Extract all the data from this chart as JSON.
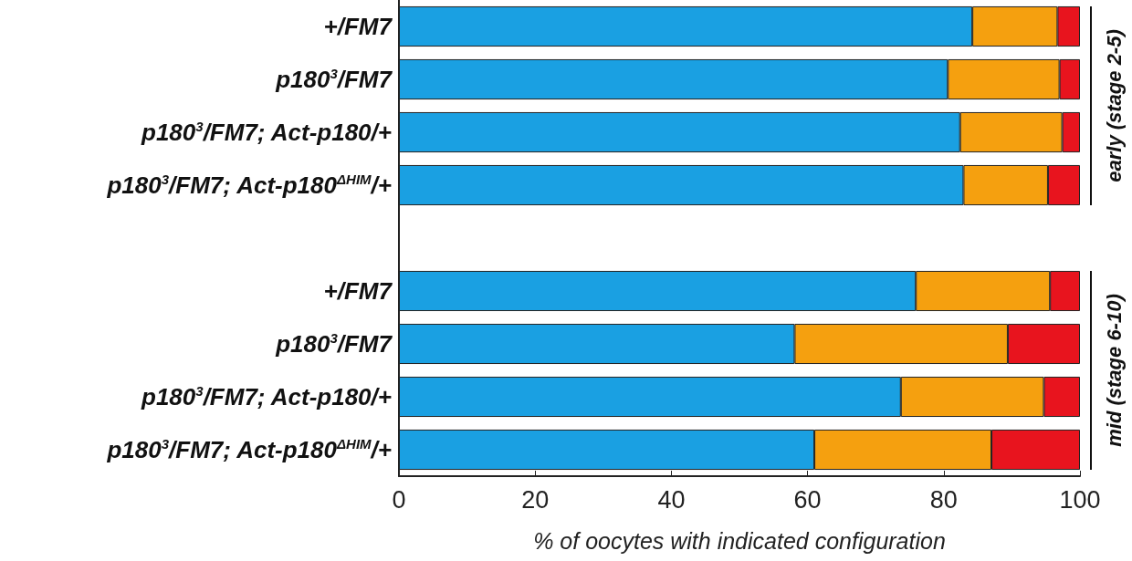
{
  "chart_data": {
    "type": "bar",
    "orientation": "horizontal",
    "stacked": true,
    "categories": [
      "+/FM7",
      "p180$^{3}$/FM7",
      "p180$^{3}$/FM7; Act-p180/+",
      "p180$^{3}$/FM7; Act-p180$^{ΔHIM}$/+",
      null,
      "+/FM7",
      "p180$^{3}$/FM7",
      "p180$^{3}$/FM7; Act-p180/+",
      "p180$^{3}$/FM7; Act-p180$^{ΔHIM}$/+"
    ],
    "series": [
      {
        "color": "#1aa0e2",
        "values": [
          84.2,
          80.6,
          82.4,
          82.9,
          null,
          75.9,
          58.1,
          73.7,
          61.0
        ]
      },
      {
        "color": "#f5a00f",
        "values": [
          12.5,
          16.4,
          15.0,
          12.4,
          null,
          19.7,
          31.3,
          21.0,
          26.0
        ]
      },
      {
        "color": "#e8141e",
        "values": [
          3.3,
          3.0,
          2.6,
          4.7,
          null,
          4.4,
          10.6,
          5.3,
          13.0
        ]
      }
    ],
    "xlim": [
      0,
      100
    ],
    "xticks": [
      0,
      20,
      40,
      60,
      80,
      100
    ],
    "xlabel": "% of oocytes with indicated configuration",
    "annotations": [
      "early (stage 2-5)",
      "mid (stage 6-10)"
    ],
    "grid": false
  }
}
